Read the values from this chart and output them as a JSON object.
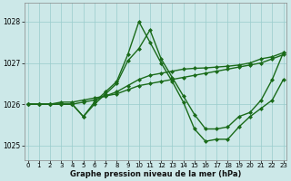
{
  "bg_color": "#cce8e8",
  "grid_color": "#99cccc",
  "line_color": "#1a6b1a",
  "ylabel_ticks": [
    1025,
    1026,
    1027,
    1028
  ],
  "xlabel_ticks": [
    0,
    1,
    2,
    3,
    4,
    5,
    6,
    7,
    8,
    9,
    10,
    11,
    12,
    13,
    14,
    15,
    16,
    17,
    18,
    19,
    20,
    21,
    22,
    23
  ],
  "xlim": [
    -0.3,
    23.3
  ],
  "ylim": [
    1024.65,
    1028.45
  ],
  "xlabel": "Graphe pression niveau de la mer (hPa)",
  "series": [
    {
      "x": [
        0,
        1,
        2,
        3,
        4,
        5,
        6,
        7,
        8,
        9,
        10,
        11,
        12,
        13,
        14,
        15,
        16,
        17,
        18,
        19,
        20,
        21,
        22,
        23
      ],
      "y": [
        1026.0,
        1026.0,
        1026.0,
        1026.05,
        1026.05,
        1026.1,
        1026.15,
        1026.2,
        1026.25,
        1026.35,
        1026.45,
        1026.5,
        1026.55,
        1026.6,
        1026.65,
        1026.7,
        1026.75,
        1026.8,
        1026.85,
        1026.9,
        1026.95,
        1027.0,
        1027.1,
        1027.2
      ],
      "marker": "D",
      "markersize": 2,
      "linewidth": 1.0
    },
    {
      "x": [
        0,
        1,
        2,
        3,
        4,
        5,
        6,
        7,
        8,
        9,
        10,
        11,
        12,
        13,
        14,
        15,
        16,
        17,
        18,
        19,
        20,
        21,
        22,
        23
      ],
      "y": [
        1026.0,
        1026.0,
        1026.0,
        1026.0,
        1026.0,
        1026.05,
        1026.1,
        1026.2,
        1026.3,
        1026.45,
        1026.6,
        1026.7,
        1026.75,
        1026.8,
        1026.85,
        1026.87,
        1026.88,
        1026.9,
        1026.92,
        1026.95,
        1027.0,
        1027.1,
        1027.15,
        1027.25
      ],
      "marker": "D",
      "markersize": 2,
      "linewidth": 1.0
    },
    {
      "x": [
        0,
        1,
        2,
        3,
        4,
        5,
        6,
        7,
        8,
        9,
        10,
        11,
        12,
        13,
        14,
        15,
        16,
        17,
        18,
        19,
        20,
        21,
        22,
        23
      ],
      "y": [
        1026.0,
        1026.0,
        1026.0,
        1026.0,
        1026.0,
        1025.7,
        1026.05,
        1026.3,
        1026.55,
        1027.2,
        1028.0,
        1027.5,
        1027.0,
        1026.55,
        1026.05,
        1025.4,
        1025.1,
        1025.15,
        1025.15,
        1025.45,
        1025.7,
        1025.9,
        1026.1,
        1026.6
      ],
      "marker": "D",
      "markersize": 2,
      "linewidth": 1.0
    },
    {
      "x": [
        0,
        1,
        2,
        3,
        4,
        5,
        6,
        7,
        8,
        9,
        10,
        11,
        12,
        13,
        14,
        15,
        16,
        17,
        18,
        19,
        20,
        21,
        22,
        23
      ],
      "y": [
        1026.0,
        1026.0,
        1026.0,
        1026.0,
        1026.0,
        1025.7,
        1026.0,
        1026.25,
        1026.5,
        1027.05,
        1027.35,
        1027.8,
        1027.1,
        1026.65,
        1026.2,
        1025.75,
        1025.4,
        1025.4,
        1025.45,
        1025.7,
        1025.8,
        1026.1,
        1026.6,
        1027.25
      ],
      "marker": "D",
      "markersize": 2,
      "linewidth": 1.0
    }
  ]
}
